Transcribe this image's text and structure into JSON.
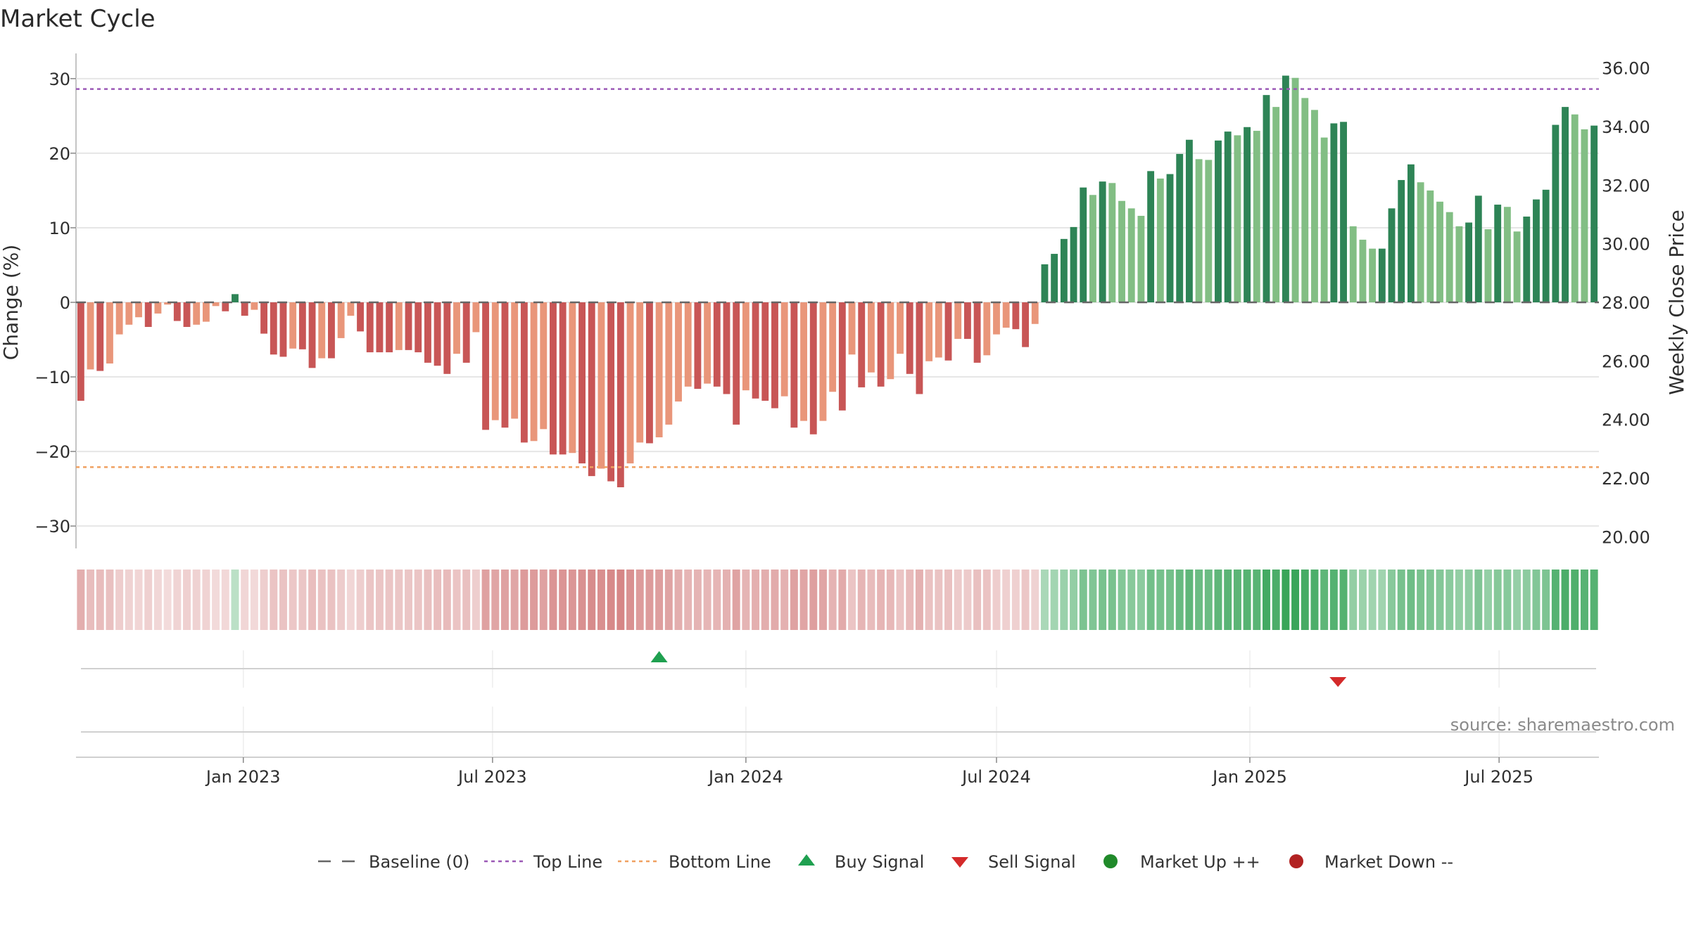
{
  "chart_data": {
    "type": "bar",
    "title": "Market Cycle",
    "ylabel_left": "Change (%)",
    "ylabel_right": "Weekly Close Price",
    "ylim_left": [
      -33,
      33
    ],
    "ylim_right": [
      19.6,
      36.4
    ],
    "yticks_left": [
      30,
      20,
      10,
      0,
      -10,
      -20,
      -30
    ],
    "yticks_left_labels": [
      "30",
      "20",
      "10",
      "0",
      "−10",
      "−20",
      "−30"
    ],
    "yticks_right": [
      36,
      34,
      32,
      30,
      28,
      26,
      24,
      22,
      20
    ],
    "yticks_right_labels": [
      "36.00",
      "34.00",
      "32.00",
      "30.00",
      "28.00",
      "26.00",
      "24.00",
      "22.00",
      "20.00"
    ],
    "x_start": "2022-09-05",
    "week_interval_days": 7,
    "xticks": [
      {
        "date": "2023-01-01",
        "label": "Jan 2023"
      },
      {
        "date": "2023-07-01",
        "label": "Jul 2023"
      },
      {
        "date": "2024-01-01",
        "label": "Jan 2024"
      },
      {
        "date": "2024-07-01",
        "label": "Jul 2024"
      },
      {
        "date": "2025-01-01",
        "label": "Jan 2025"
      },
      {
        "date": "2025-07-01",
        "label": "Jul 2025"
      }
    ],
    "top_line": 28.6,
    "bottom_line": -22.1,
    "baseline": 0,
    "grid": true,
    "legend_position": "bottom",
    "values": [
      -13.2,
      -9.0,
      -9.2,
      -8.2,
      -4.3,
      -3.0,
      -2.0,
      -3.3,
      -1.5,
      -0.3,
      -2.5,
      -3.3,
      -3.0,
      -2.6,
      -0.5,
      -1.2,
      1.1,
      -1.8,
      -1.0,
      -4.2,
      -7.0,
      -7.3,
      -6.2,
      -6.3,
      -8.8,
      -7.5,
      -7.5,
      -4.8,
      -1.8,
      -3.9,
      -6.7,
      -6.7,
      -6.7,
      -6.4,
      -6.4,
      -6.7,
      -8.1,
      -8.5,
      -9.6,
      -6.9,
      -8.1,
      -4.0,
      -17.1,
      -15.8,
      -16.8,
      -15.6,
      -18.8,
      -18.6,
      -17.0,
      -20.4,
      -20.4,
      -20.2,
      -21.6,
      -23.3,
      -22.3,
      -24.0,
      -24.8,
      -21.6,
      -18.8,
      -18.9,
      -18.1,
      -16.4,
      -13.3,
      -11.3,
      -11.6,
      -10.9,
      -11.3,
      -12.3,
      -16.4,
      -11.8,
      -12.9,
      -13.2,
      -14.2,
      -12.6,
      -16.8,
      -15.9,
      -17.7,
      -15.9,
      -12.0,
      -14.5,
      -7.0,
      -11.4,
      -9.4,
      -11.3,
      -10.3,
      -6.9,
      -9.6,
      -12.3,
      -7.9,
      -7.4,
      -7.8,
      -4.9,
      -4.9,
      -8.1,
      -7.1,
      -4.3,
      -3.4,
      -3.6,
      -6.0,
      -2.9,
      5.1,
      6.5,
      8.5,
      10.1,
      15.4,
      14.4,
      16.2,
      16.0,
      13.6,
      12.6,
      11.6,
      17.6,
      16.6,
      17.2,
      19.9,
      21.8,
      19.2,
      19.1,
      21.7,
      22.9,
      22.4,
      23.5,
      23.0,
      27.8,
      26.2,
      30.4,
      30.1,
      27.4,
      25.8,
      22.1,
      24.0,
      24.2,
      10.2,
      8.4,
      7.2,
      7.2,
      12.6,
      16.4,
      18.5,
      16.1,
      15.0,
      13.5,
      12.1,
      10.2,
      10.7,
      14.3,
      9.8,
      13.1,
      12.8,
      9.5,
      11.5,
      13.8,
      15.1,
      23.8,
      26.2,
      25.2,
      23.2,
      23.7
    ],
    "signals": [
      {
        "type": "buy",
        "date": "2023-10-30"
      },
      {
        "type": "sell",
        "date": "2025-03-06"
      }
    ],
    "legend": [
      {
        "key": "baseline",
        "label": "Baseline (0)"
      },
      {
        "key": "top",
        "label": "Top Line"
      },
      {
        "key": "bottom",
        "label": "Bottom Line"
      },
      {
        "key": "buy",
        "label": "Buy Signal"
      },
      {
        "key": "sell",
        "label": "Sell Signal"
      },
      {
        "key": "up",
        "label": "Market Up ++"
      },
      {
        "key": "down",
        "label": "Market Down --"
      }
    ],
    "source": "source: sharemaestro.com"
  },
  "colors": {
    "pos_dark": "#2e8456",
    "pos_light": "#82be84",
    "neg_dark": "#c85656",
    "neg_light": "#e9967a",
    "top_line": "#9b59b6",
    "bottom_line": "#f0a060",
    "baseline": "#666666",
    "buy": "#1fa050",
    "sell": "#d42a2a",
    "market_up": "#208a2a",
    "market_down": "#b22222",
    "grid": "#e6e6e6"
  }
}
